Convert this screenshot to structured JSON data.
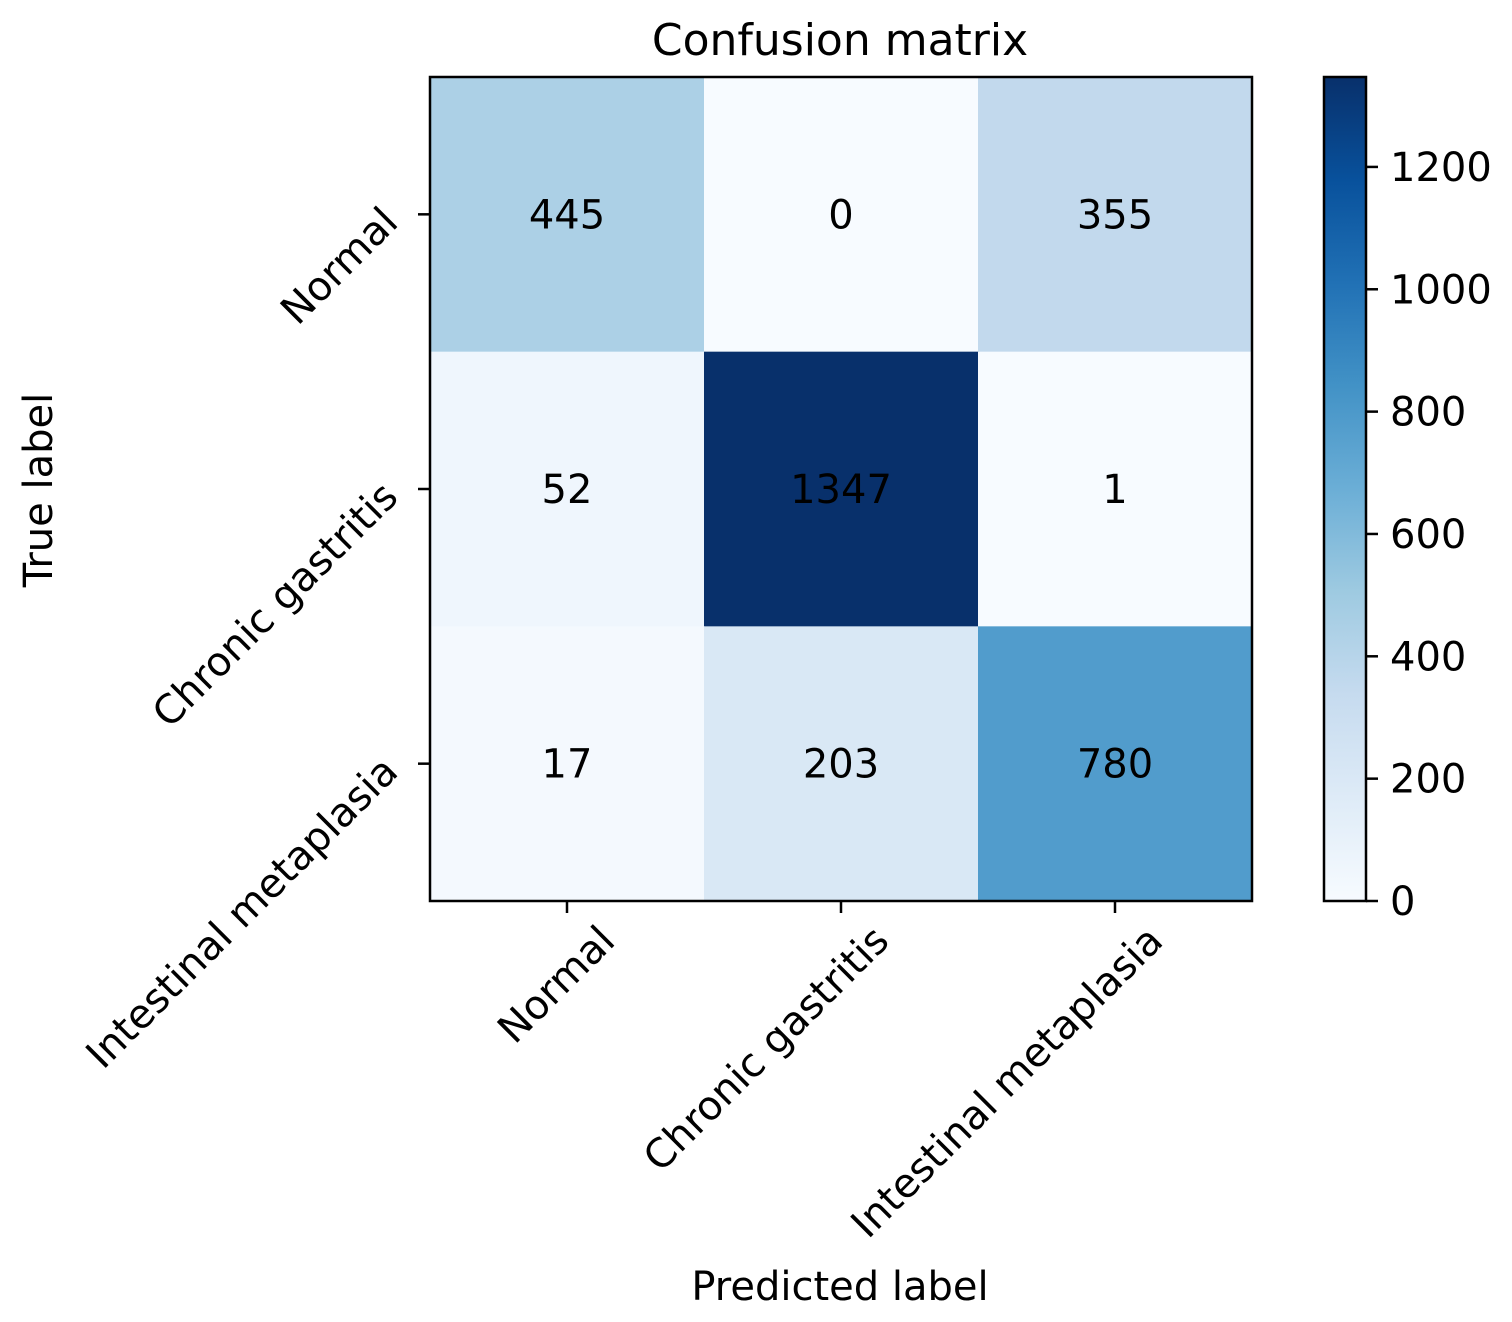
{
  "chart_data": {
    "type": "heatmap",
    "title": "Confusion matrix",
    "xlabel": "Predicted label",
    "ylabel": "True label",
    "x_categories": [
      "Normal",
      "Chronic gastritis",
      "Intestinal metaplasia"
    ],
    "y_categories": [
      "Normal",
      "Chronic gastritis",
      "Intestinal metaplasia"
    ],
    "matrix": [
      [
        445,
        0,
        355
      ],
      [
        52,
        1347,
        1
      ],
      [
        17,
        203,
        780
      ]
    ],
    "colormap": "Blues",
    "color_range": [
      0,
      1347
    ],
    "colorbar_ticks": [
      0,
      200,
      400,
      600,
      800,
      1000,
      1200
    ],
    "text_color_light": "#ffffff",
    "text_color_dark": "#000000"
  }
}
